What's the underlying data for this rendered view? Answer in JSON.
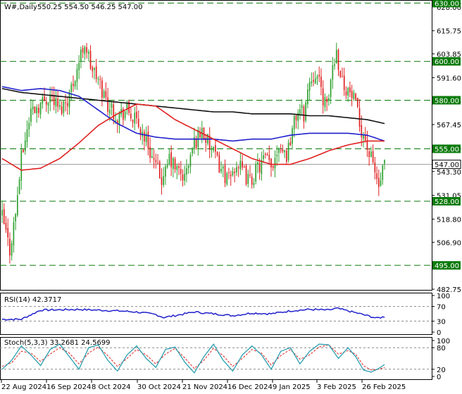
{
  "header": {
    "symbol": "W#,Daily",
    "ohlc": "550.25 554.50 546.25 547.00"
  },
  "colors": {
    "bull": "#2ca02c",
    "bear": "#e02020",
    "ma_fast": "#e02020",
    "ma_mid": "#1f1fcc",
    "ma_slow": "#111111",
    "level": "#0a7a0a",
    "rsi": "#1f1fcc",
    "stoch_k": "#2a9fb0",
    "stoch_d": "#e02020"
  },
  "chart_data": [
    {
      "type": "candlestick",
      "ylim": [
        482.75,
        630.5
      ],
      "price_ticks": [
        "630.00",
        "628.00",
        "615.75",
        "603.85",
        "591.60",
        "579.30",
        "567.45",
        "555.20",
        "543.30",
        "531.05",
        "518.80",
        "506.90",
        "494.65",
        "482.75"
      ],
      "x_labels": [
        "22 Aug 2024",
        "16 Sep 2024",
        "8 Oct 2024",
        "30 Oct 2024",
        "21 Nov 2024",
        "16 Dec 2024",
        "9 Jan 2025",
        "3 Feb 2025",
        "26 Feb 2025"
      ],
      "levels": [
        {
          "value": 630.0,
          "label": "630.00"
        },
        {
          "value": 600.0,
          "label": "600.00"
        },
        {
          "value": 580.0,
          "label": "580.00"
        },
        {
          "value": 555.0,
          "label": "555.00"
        },
        {
          "value": 528.0,
          "label": "528.00"
        },
        {
          "value": 495.0,
          "label": "495.00"
        }
      ],
      "last_price": {
        "value": 547.0,
        "label": "547.00"
      },
      "keypoints": [
        [
          0,
          520
        ],
        [
          4,
          503
        ],
        [
          7,
          522
        ],
        [
          10,
          550
        ],
        [
          15,
          575
        ],
        [
          20,
          578
        ],
        [
          25,
          583
        ],
        [
          30,
          575
        ],
        [
          35,
          583
        ],
        [
          40,
          600
        ],
        [
          43,
          610
        ],
        [
          46,
          598
        ],
        [
          50,
          590
        ],
        [
          55,
          578
        ],
        [
          60,
          572
        ],
        [
          65,
          575
        ],
        [
          70,
          568
        ],
        [
          75,
          560
        ],
        [
          80,
          545
        ],
        [
          84,
          538
        ],
        [
          87,
          550
        ],
        [
          90,
          545
        ],
        [
          95,
          540
        ],
        [
          100,
          558
        ],
        [
          104,
          565
        ],
        [
          107,
          558
        ],
        [
          110,
          552
        ],
        [
          114,
          545
        ],
        [
          118,
          538
        ],
        [
          122,
          548
        ],
        [
          125,
          543
        ],
        [
          129,
          538
        ],
        [
          133,
          545
        ],
        [
          137,
          550
        ],
        [
          140,
          545
        ],
        [
          144,
          558
        ],
        [
          148,
          552
        ],
        [
          151,
          565
        ],
        [
          154,
          575
        ],
        [
          157,
          573
        ],
        [
          160,
          590
        ],
        [
          163,
          595
        ],
        [
          166,
          585
        ],
        [
          169,
          575
        ],
        [
          172,
          598
        ],
        [
          174,
          605
        ],
        [
          177,
          590
        ],
        [
          180,
          585
        ],
        [
          183,
          580
        ],
        [
          186,
          568
        ],
        [
          189,
          560
        ],
        [
          191,
          552
        ],
        [
          193,
          547
        ],
        [
          196,
          535
        ],
        [
          199,
          547
        ]
      ],
      "ma_fast": [
        [
          0,
          550
        ],
        [
          10,
          544
        ],
        [
          20,
          545
        ],
        [
          30,
          550
        ],
        [
          40,
          558
        ],
        [
          50,
          567
        ],
        [
          60,
          573
        ],
        [
          70,
          578
        ],
        [
          80,
          577
        ],
        [
          90,
          570
        ],
        [
          100,
          565
        ],
        [
          110,
          560
        ],
        [
          120,
          555
        ],
        [
          130,
          550
        ],
        [
          140,
          547
        ],
        [
          150,
          547
        ],
        [
          160,
          550
        ],
        [
          170,
          554
        ],
        [
          180,
          557
        ],
        [
          190,
          559
        ],
        [
          199,
          559
        ]
      ],
      "ma_mid": [
        [
          0,
          587
        ],
        [
          10,
          585
        ],
        [
          20,
          586
        ],
        [
          30,
          585
        ],
        [
          40,
          582
        ],
        [
          50,
          575
        ],
        [
          60,
          568
        ],
        [
          70,
          563
        ],
        [
          80,
          561
        ],
        [
          90,
          560
        ],
        [
          100,
          560
        ],
        [
          110,
          560
        ],
        [
          120,
          559
        ],
        [
          130,
          560
        ],
        [
          140,
          560
        ],
        [
          150,
          562
        ],
        [
          160,
          563
        ],
        [
          170,
          563
        ],
        [
          180,
          563
        ],
        [
          190,
          562
        ],
        [
          199,
          559
        ]
      ],
      "ma_slow": [
        [
          0,
          586
        ],
        [
          10,
          584
        ],
        [
          20,
          583
        ],
        [
          30,
          582
        ],
        [
          40,
          581
        ],
        [
          50,
          580
        ],
        [
          60,
          579
        ],
        [
          70,
          578
        ],
        [
          80,
          577
        ],
        [
          90,
          576
        ],
        [
          100,
          575
        ],
        [
          110,
          574
        ],
        [
          120,
          574
        ],
        [
          130,
          573
        ],
        [
          140,
          573
        ],
        [
          150,
          573
        ],
        [
          160,
          572
        ],
        [
          170,
          572
        ],
        [
          180,
          571
        ],
        [
          190,
          570
        ],
        [
          199,
          568
        ]
      ]
    },
    {
      "type": "line",
      "title": "RSI(14) 42.3717",
      "ylim": [
        0,
        100
      ],
      "ticks": [
        "100",
        "70",
        "30",
        "0"
      ],
      "guides": [
        70,
        30
      ],
      "keypoints": [
        [
          0,
          35
        ],
        [
          10,
          35
        ],
        [
          20,
          60
        ],
        [
          40,
          62
        ],
        [
          50,
          60
        ],
        [
          60,
          58
        ],
        [
          70,
          55
        ],
        [
          80,
          48
        ],
        [
          84,
          40
        ],
        [
          90,
          45
        ],
        [
          100,
          55
        ],
        [
          110,
          50
        ],
        [
          120,
          45
        ],
        [
          130,
          52
        ],
        [
          140,
          50
        ],
        [
          150,
          58
        ],
        [
          160,
          62
        ],
        [
          170,
          60
        ],
        [
          174,
          65
        ],
        [
          180,
          58
        ],
        [
          190,
          45
        ],
        [
          195,
          38
        ],
        [
          199,
          42
        ]
      ]
    },
    {
      "type": "line",
      "title": "Stoch(5,3,3) 33.2681 24.5699",
      "ylim": [
        0,
        100
      ],
      "ticks": [
        "100",
        "80",
        "20",
        "0"
      ],
      "guides": [
        80,
        20
      ],
      "k_keypoints": [
        [
          0,
          20
        ],
        [
          5,
          45
        ],
        [
          10,
          85
        ],
        [
          15,
          60
        ],
        [
          20,
          30
        ],
        [
          25,
          75
        ],
        [
          30,
          90
        ],
        [
          35,
          55
        ],
        [
          40,
          20
        ],
        [
          45,
          80
        ],
        [
          50,
          88
        ],
        [
          55,
          45
        ],
        [
          60,
          15
        ],
        [
          65,
          60
        ],
        [
          70,
          85
        ],
        [
          75,
          50
        ],
        [
          80,
          25
        ],
        [
          85,
          75
        ],
        [
          90,
          82
        ],
        [
          95,
          40
        ],
        [
          100,
          10
        ],
        [
          105,
          55
        ],
        [
          110,
          90
        ],
        [
          115,
          45
        ],
        [
          120,
          15
        ],
        [
          125,
          60
        ],
        [
          130,
          85
        ],
        [
          135,
          60
        ],
        [
          140,
          20
        ],
        [
          145,
          70
        ],
        [
          150,
          80
        ],
        [
          155,
          35
        ],
        [
          160,
          70
        ],
        [
          165,
          90
        ],
        [
          170,
          88
        ],
        [
          175,
          50
        ],
        [
          180,
          80
        ],
        [
          184,
          55
        ],
        [
          188,
          18
        ],
        [
          192,
          12
        ],
        [
          196,
          22
        ],
        [
          199,
          33
        ]
      ],
      "d_keypoints": [
        [
          0,
          28
        ],
        [
          5,
          38
        ],
        [
          10,
          70
        ],
        [
          15,
          65
        ],
        [
          20,
          42
        ],
        [
          25,
          62
        ],
        [
          30,
          80
        ],
        [
          35,
          65
        ],
        [
          40,
          35
        ],
        [
          45,
          65
        ],
        [
          50,
          82
        ],
        [
          55,
          58
        ],
        [
          60,
          28
        ],
        [
          65,
          50
        ],
        [
          70,
          75
        ],
        [
          75,
          60
        ],
        [
          80,
          35
        ],
        [
          85,
          62
        ],
        [
          90,
          78
        ],
        [
          95,
          52
        ],
        [
          100,
          22
        ],
        [
          105,
          45
        ],
        [
          110,
          78
        ],
        [
          115,
          58
        ],
        [
          120,
          28
        ],
        [
          125,
          50
        ],
        [
          130,
          75
        ],
        [
          135,
          65
        ],
        [
          140,
          32
        ],
        [
          145,
          58
        ],
        [
          150,
          75
        ],
        [
          155,
          48
        ],
        [
          160,
          60
        ],
        [
          165,
          82
        ],
        [
          170,
          88
        ],
        [
          175,
          62
        ],
        [
          180,
          72
        ],
        [
          184,
          62
        ],
        [
          188,
          30
        ],
        [
          192,
          18
        ],
        [
          196,
          20
        ],
        [
          199,
          25
        ]
      ]
    }
  ]
}
